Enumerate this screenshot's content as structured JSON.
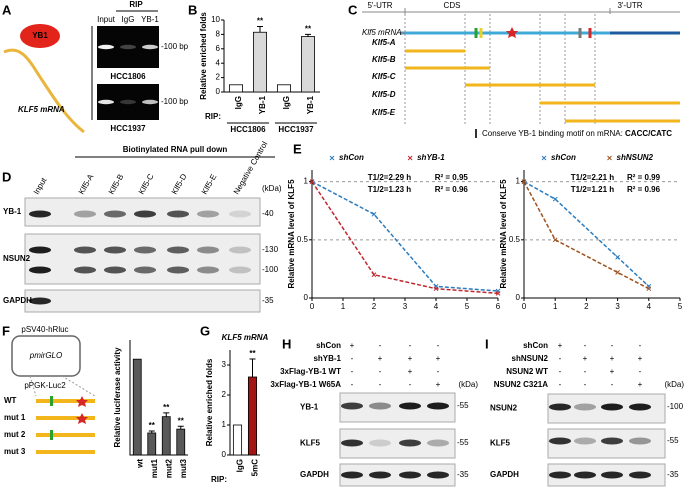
{
  "panel_letters": [
    "A",
    "B",
    "C",
    "D",
    "E",
    "F",
    "G",
    "H",
    "I"
  ],
  "panel_A": {
    "protein": "YB1",
    "rna": "KLF5 mRNA",
    "header": "RIP",
    "lanes": [
      "Input",
      "IgG",
      "YB-1"
    ],
    "gels": [
      {
        "cell_line": "HCC1806",
        "marker": "-100 bp"
      },
      {
        "cell_line": "HCC1937",
        "marker": "-100 bp"
      }
    ]
  },
  "panel_C": {
    "regions": [
      "5'-UTR",
      "CDS",
      "3'-UTR"
    ],
    "mrna": "Klf5 mRNA",
    "fragments": [
      "Klf5-A",
      "Klf5-B",
      "Klf5-C",
      "Klf5-D",
      "Klf5-E"
    ],
    "legend": "Conserve YB-1 binding motif on mRNA: ",
    "motif": "CACC/CATC"
  },
  "panel_D": {
    "header": "Biotinylated RNA pull down",
    "lanes": [
      "Input",
      "Klf5-A",
      "Klf5-B",
      "Klf5-C",
      "Klf5-D",
      "Klf5-E",
      "Negative Control"
    ],
    "unit": "(kDa)",
    "blots": [
      {
        "label": "YB-1",
        "markers": [
          "-40"
        ]
      },
      {
        "label": "NSUN2",
        "markers": [
          "-130",
          "-100"
        ]
      },
      {
        "label": "GAPDH",
        "markers": [
          "-35"
        ]
      }
    ]
  },
  "panel_F": {
    "promoter_top": "pSV40-hRluc",
    "vector": "pmirGLO",
    "promoter_bottom": "pPGK-Luc2",
    "constructs": [
      "WT",
      "mut 1",
      "mut 2",
      "mut 3"
    ]
  },
  "panel_H": {
    "conditions": [
      {
        "label": "shCon",
        "signs": [
          "+",
          "-",
          "-",
          "-"
        ]
      },
      {
        "label": "shYB-1",
        "signs": [
          "-",
          "+",
          "+",
          "+"
        ]
      },
      {
        "label": "3xFlag-YB-1 WT",
        "signs": [
          "-",
          "-",
          "+",
          "-"
        ]
      },
      {
        "label": "3xFlag-YB-1 W65A",
        "signs": [
          "-",
          "-",
          "-",
          "+"
        ]
      }
    ],
    "unit": "(kDa)",
    "blots": [
      {
        "label": "YB-1",
        "markers": [
          "-55"
        ]
      },
      {
        "label": "KLF5",
        "markers": [
          "-55"
        ]
      },
      {
        "label": "GAPDH",
        "markers": [
          "-35"
        ]
      }
    ]
  },
  "panel_I": {
    "conditions": [
      {
        "label": "shCon",
        "signs": [
          "+",
          "-",
          "-",
          "-"
        ]
      },
      {
        "label": "shNSUN2",
        "signs": [
          "-",
          "+",
          "+",
          "+"
        ]
      },
      {
        "label": "NSUN2 WT",
        "signs": [
          "-",
          "-",
          "+",
          "-"
        ]
      },
      {
        "label": "NSUN2 C321A",
        "signs": [
          "-",
          "-",
          "-",
          "+"
        ]
      }
    ],
    "unit": "(kDa)",
    "blots": [
      {
        "label": "NSUN2",
        "markers": [
          "-100"
        ]
      },
      {
        "label": "KLF5",
        "markers": [
          "-55"
        ]
      },
      {
        "label": "GAPDH",
        "markers": [
          "-35"
        ]
      }
    ]
  },
  "chart_data": [
    {
      "type": "bar",
      "y_label": "Relative enriched folds",
      "categories": [
        "IgG",
        "YB-1",
        "IgG",
        "YB-1"
      ],
      "values": [
        1,
        8.3,
        1,
        7.7
      ],
      "errors": [
        null,
        0.8,
        null,
        0.3
      ],
      "colors": [
        "#ffffff",
        "#d9d9d9",
        "#ffffff",
        "#d9d9d9"
      ],
      "annotations": [
        null,
        "**",
        null,
        "**"
      ],
      "ylim": [
        0,
        10
      ],
      "yticks": [
        0,
        2,
        4,
        6,
        8,
        10
      ],
      "x_prefix": "RIP:",
      "groups": [
        "HCC1806",
        "HCC1937"
      ]
    },
    {
      "type": "line",
      "y_label": "Relative mRNA level of KLF5",
      "x": [
        0,
        2,
        4,
        6
      ],
      "series": [
        {
          "name": "shCon",
          "color": "#2a7bbf",
          "values": [
            1,
            0.72,
            0.1,
            0.06
          ]
        },
        {
          "name": "shYB-1",
          "color": "#c1272d",
          "values": [
            1,
            0.2,
            0.08,
            0.04
          ]
        }
      ],
      "xlim": [
        0,
        6
      ],
      "xticks": [
        0,
        1,
        2,
        3,
        4,
        5,
        6
      ],
      "ylim": [
        0,
        1.1
      ],
      "yticks": [
        0,
        0.5,
        1
      ],
      "grid": true,
      "annotations": [
        {
          "text": "T1/2=2.29 h",
          "color": "#2a7bbf"
        },
        {
          "text": "R² = 0.95",
          "color": "#2a7bbf"
        },
        {
          "text": "T1/2=1.23 h",
          "color": "#c1272d"
        },
        {
          "text": "R² = 0.96",
          "color": "#c1272d"
        }
      ]
    },
    {
      "type": "line",
      "y_label": "Relative mRNA level of KLF5",
      "x": [
        0,
        1,
        3,
        4
      ],
      "series": [
        {
          "name": "shCon",
          "color": "#2a7bbf",
          "values": [
            1,
            0.85,
            0.35,
            0.1
          ]
        },
        {
          "name": "shNSUN2",
          "color": "#a0521c",
          "values": [
            1,
            0.5,
            0.22,
            0.08
          ]
        }
      ],
      "xlim": [
        0,
        5
      ],
      "xticks": [
        0,
        1,
        2,
        3,
        4,
        5
      ],
      "ylim": [
        0,
        1.1
      ],
      "yticks": [
        0,
        0.5,
        1
      ],
      "grid": true,
      "annotations": [
        {
          "text": "T1/2=2.21 h",
          "color": "#2a7bbf"
        },
        {
          "text": "R² = 0.99",
          "color": "#2a7bbf"
        },
        {
          "text": "T1/2=1.21 h",
          "color": "#a0521c"
        },
        {
          "text": "R² = 0.96",
          "color": "#a0521c"
        }
      ]
    },
    {
      "type": "bar",
      "y_label": "Relative luciferase activity",
      "categories": [
        "wt",
        "mut1",
        "mut2",
        "mut3"
      ],
      "values": [
        1,
        0.23,
        0.4,
        0.27
      ],
      "errors": [
        null,
        0.02,
        0.04,
        0.03
      ],
      "color": "#595959",
      "annotations": [
        null,
        "**",
        "**",
        "**"
      ],
      "ylim": [
        0,
        1.2
      ]
    },
    {
      "type": "bar",
      "title": "KLF5 mRNA",
      "y_label": "Relative enriched folds",
      "categories": [
        "IgG",
        "5mC"
      ],
      "values": [
        1,
        2.6
      ],
      "errors": [
        null,
        0.6
      ],
      "colors": [
        "#ffffff",
        "#a31515"
      ],
      "annotations": [
        null,
        "**"
      ],
      "ylim": [
        0,
        3.5
      ],
      "yticks": [
        0,
        1,
        2,
        3
      ],
      "x_prefix": "RIP:"
    }
  ]
}
